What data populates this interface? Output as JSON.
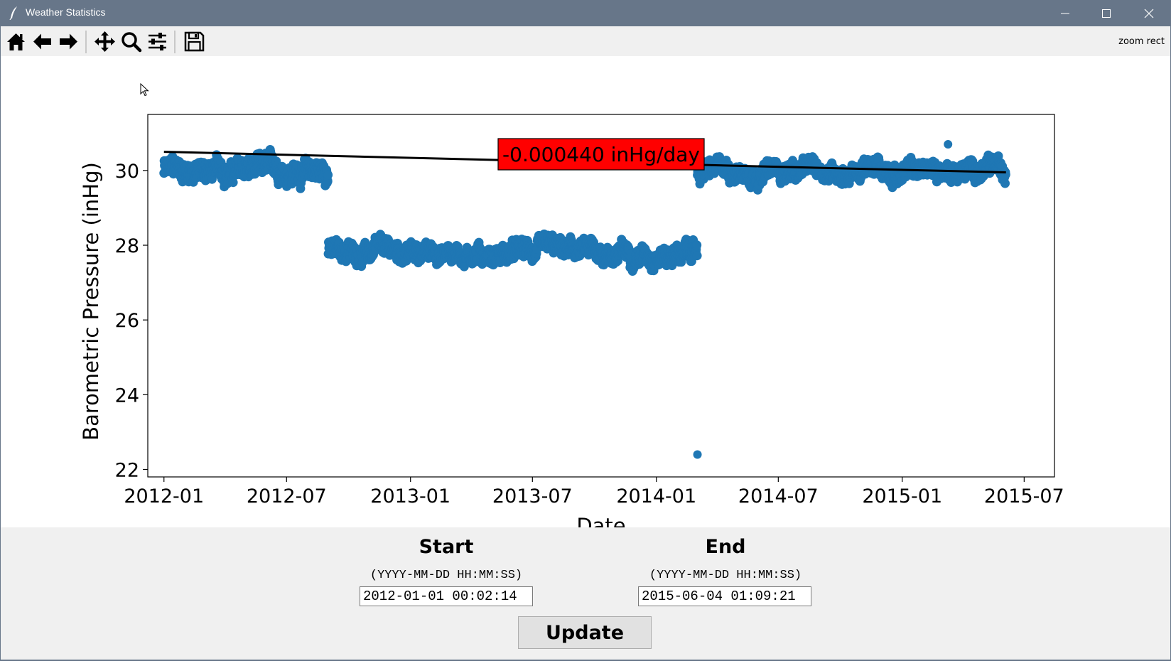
{
  "window": {
    "title": "Weather Statistics"
  },
  "toolbar": {
    "buttons": [
      {
        "name": "home-button",
        "icon": "home-icon"
      },
      {
        "name": "back-button",
        "icon": "arrow-left-icon"
      },
      {
        "name": "forward-button",
        "icon": "arrow-right-icon"
      },
      {
        "name": "pan-button",
        "icon": "move-icon"
      },
      {
        "name": "zoom-button",
        "icon": "magnifier-icon"
      },
      {
        "name": "configure-subplots-button",
        "icon": "sliders-icon"
      },
      {
        "name": "save-button",
        "icon": "floppy-disk-icon"
      }
    ],
    "mode_label": "zoom rect"
  },
  "chart_data": {
    "type": "scatter",
    "xlabel": "Date",
    "ylabel": "Barometric Pressure (inHg)",
    "x_ticks": [
      "2012-01",
      "2012-07",
      "2013-01",
      "2013-07",
      "2014-01",
      "2014-07",
      "2015-01",
      "2015-07"
    ],
    "y_ticks": [
      22,
      24,
      26,
      28,
      30
    ],
    "xlim": [
      "2011-12-08",
      "2015-08-15"
    ],
    "ylim": [
      21.8,
      31.5
    ],
    "grid": false,
    "point_color": "#1f77b4",
    "clusters": [
      {
        "start": "2012-01-01",
        "end": "2012-09-01",
        "mean": 30.0,
        "spread": 0.35,
        "min": 29.3,
        "max": 30.7
      },
      {
        "start": "2012-09-01",
        "end": "2014-03-03",
        "mean": 27.8,
        "spread": 0.3,
        "min": 27.05,
        "max": 28.6
      },
      {
        "start": "2014-03-03",
        "end": "2015-06-04",
        "mean": 30.0,
        "spread": 0.3,
        "min": 29.2,
        "max": 31.05
      }
    ],
    "outliers": [
      {
        "x": "2014-03-03",
        "y": 22.4
      },
      {
        "x": "2015-03-10",
        "y": 30.7
      }
    ],
    "trendline": {
      "start": {
        "x": "2012-01-01",
        "y": 30.5
      },
      "end": {
        "x": "2015-06-04",
        "y": 29.95
      },
      "color": "#000000"
    },
    "annotation": {
      "text": "-0.000440 inHg/day",
      "background": "#ff0000"
    }
  },
  "controls": {
    "start": {
      "label": "Start",
      "hint": "(YYYY-MM-DD HH:MM:SS)",
      "value": "2012-01-01 00:02:14"
    },
    "end": {
      "label": "End",
      "hint": "(YYYY-MM-DD HH:MM:SS)",
      "value": "2015-06-04 01:09:21"
    },
    "update_label": "Update"
  }
}
